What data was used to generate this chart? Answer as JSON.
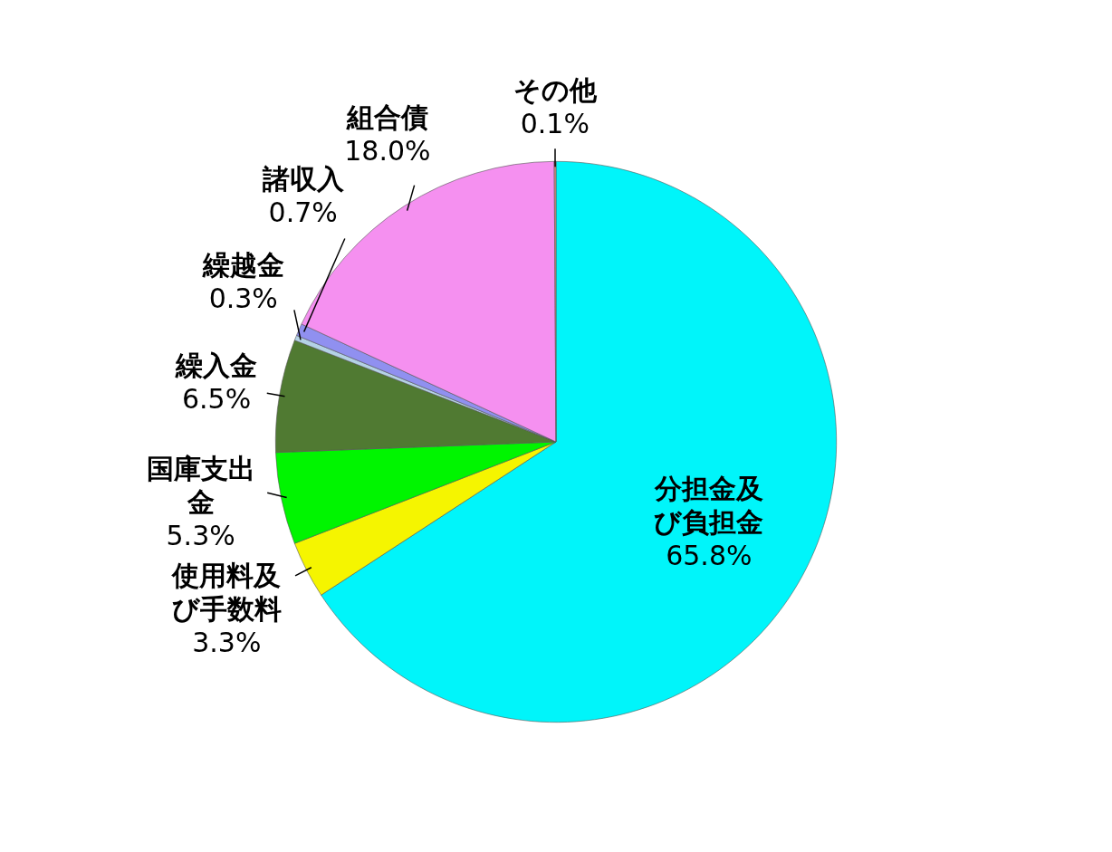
{
  "chart_data": {
    "type": "pie",
    "categories": [
      "分担金及び負担金",
      "使用料及び手数料",
      "国庫支出金",
      "繰入金",
      "繰越金",
      "諸収入",
      "組合債",
      "その他"
    ],
    "values": [
      65.8,
      3.3,
      5.3,
      6.5,
      0.3,
      0.7,
      18.0,
      0.1
    ],
    "colors": [
      "#00f5fa",
      "#f5f500",
      "#00f500",
      "#507a32",
      "#b4d2e6",
      "#9090f0",
      "#f590f0",
      "#e09080"
    ],
    "value_labels": [
      "65.8%",
      "3.3%",
      "5.3%",
      "6.5%",
      "0.3%",
      "0.7%",
      "18.0%",
      "0.1%"
    ]
  }
}
